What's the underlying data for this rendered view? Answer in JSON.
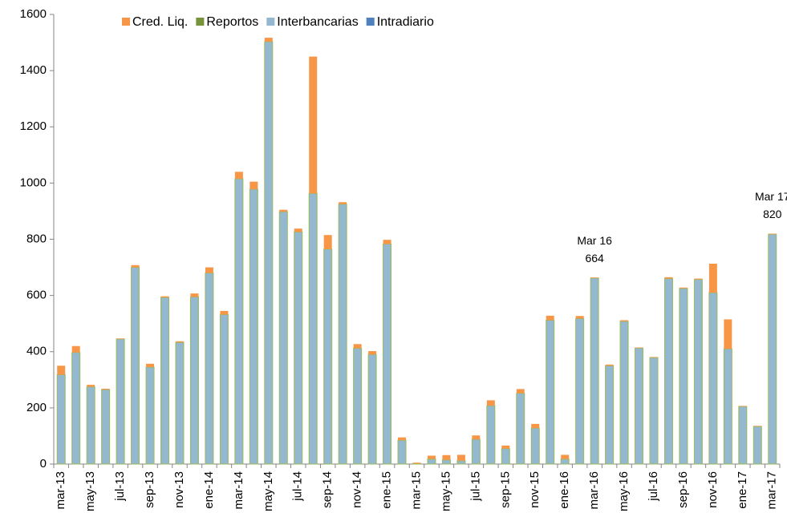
{
  "chart_data": {
    "type": "stacked_bar",
    "categories": [
      "mar-13",
      null,
      "may-13",
      null,
      "jul-13",
      null,
      "sep-13",
      null,
      "nov-13",
      null,
      "ene-14",
      null,
      "mar-14",
      null,
      "may-14",
      null,
      "jul-14",
      null,
      "sep-14",
      null,
      "nov-14",
      null,
      "ene-15",
      null,
      "mar-15",
      null,
      "may-15",
      null,
      "jul-15",
      null,
      "sep-15",
      null,
      "nov-15",
      null,
      "ene-16",
      null,
      "mar-16",
      null,
      "may-16",
      null,
      "jul-16",
      null,
      "sep-16",
      null,
      "nov-16",
      null,
      "ene-17",
      null,
      "mar-17"
    ],
    "series": [
      {
        "name": "Cred. Liq.",
        "color": "#f79646",
        "values": [
          32,
          23,
          7,
          3,
          2,
          8,
          12,
          4,
          4,
          12,
          20,
          13,
          25,
          27,
          14,
          7,
          12,
          487,
          50,
          7,
          15,
          12,
          15,
          10,
          3,
          12,
          17,
          21,
          14,
          19,
          11,
          15,
          15,
          16,
          15,
          9,
          2,
          4,
          4,
          2,
          2,
          5,
          3,
          3,
          103,
          105,
          2,
          2,
          2
        ]
      },
      {
        "name": "Reportos",
        "color": "#77933c",
        "values": [
          0,
          0,
          0,
          0,
          0,
          0,
          0,
          0,
          0,
          0,
          0,
          0,
          0,
          0,
          0,
          0,
          0,
          0,
          0,
          0,
          0,
          0,
          0,
          0,
          0,
          0,
          0,
          0,
          0,
          0,
          0,
          0,
          0,
          0,
          0,
          0,
          0,
          0,
          0,
          0,
          0,
          0,
          0,
          0,
          0,
          0,
          0,
          0,
          0
        ]
      },
      {
        "name": "Interbancarias",
        "color": "#93b8cf",
        "values": [
          318,
          397,
          275,
          265,
          445,
          700,
          345,
          593,
          433,
          595,
          680,
          532,
          1015,
          978,
          1503,
          898,
          826,
          963,
          765,
          925,
          412,
          390,
          783,
          85,
          2,
          18,
          15,
          12,
          88,
          208,
          55,
          252,
          128,
          512,
          18,
          518,
          662,
          350,
          508,
          413,
          379,
          660,
          625,
          657,
          610,
          410,
          205,
          134,
          818
        ]
      },
      {
        "name": "Intradiario",
        "color": "#4f81bd",
        "values": [
          0,
          0,
          0,
          0,
          0,
          0,
          0,
          0,
          0,
          0,
          0,
          0,
          0,
          0,
          0,
          0,
          0,
          0,
          0,
          0,
          0,
          0,
          0,
          0,
          0,
          0,
          0,
          0,
          0,
          0,
          0,
          0,
          0,
          0,
          0,
          0,
          0,
          0,
          0,
          0,
          0,
          0,
          0,
          0,
          0,
          0,
          0,
          0,
          0
        ]
      }
    ],
    "ylim": [
      0,
      1600
    ],
    "yticks": [
      0,
      200,
      400,
      600,
      800,
      1000,
      1200,
      1400,
      1600
    ],
    "grid": false,
    "annotations": [
      {
        "label": "Mar 16",
        "value": 664,
        "category": "mar-16"
      },
      {
        "label": "Mar 17",
        "value": 820,
        "category": "mar-17"
      }
    ]
  }
}
